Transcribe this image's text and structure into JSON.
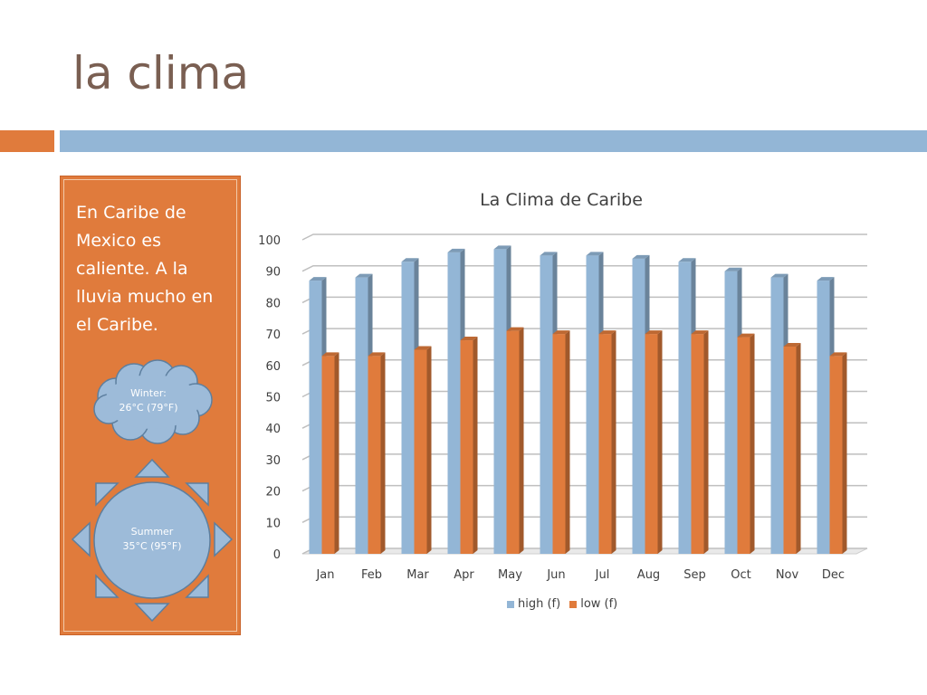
{
  "slide": {
    "title": "la clima",
    "body_text": "En Caribe de Mexico es caliente. A la lluvia mucho en el Caribe."
  },
  "shapes": {
    "cloud": {
      "line1": "Winter:",
      "line2": "26°C (79°F)"
    },
    "sun": {
      "line1": "Summer",
      "line2": "35°C (95°F)"
    }
  },
  "colors": {
    "accent_orange": "#e07b3c",
    "accent_blue": "#93b6d6",
    "title_brown": "#7a5f52",
    "shape_blue": "#9dbbd9"
  },
  "chart_data": {
    "type": "bar",
    "title": "La Clima de Caribe",
    "categories": [
      "Jan",
      "Feb",
      "Mar",
      "Apr",
      "May",
      "Jun",
      "Jul",
      "Aug",
      "Sep",
      "Oct",
      "Nov",
      "Dec"
    ],
    "series": [
      {
        "name": "high (f)",
        "color": "#93b6d6",
        "values": [
          87,
          88,
          93,
          96,
          97,
          95,
          95,
          94,
          93,
          90,
          88,
          87
        ]
      },
      {
        "name": "low (f)",
        "color": "#e07b3c",
        "values": [
          63,
          63,
          65,
          68,
          71,
          70,
          70,
          70,
          70,
          69,
          66,
          63
        ]
      }
    ],
    "ylim": [
      0,
      100
    ],
    "yticks": [
      0,
      10,
      20,
      30,
      40,
      50,
      60,
      70,
      80,
      90,
      100
    ],
    "grid": true,
    "legend_position": "bottom",
    "style": "3d-column"
  }
}
